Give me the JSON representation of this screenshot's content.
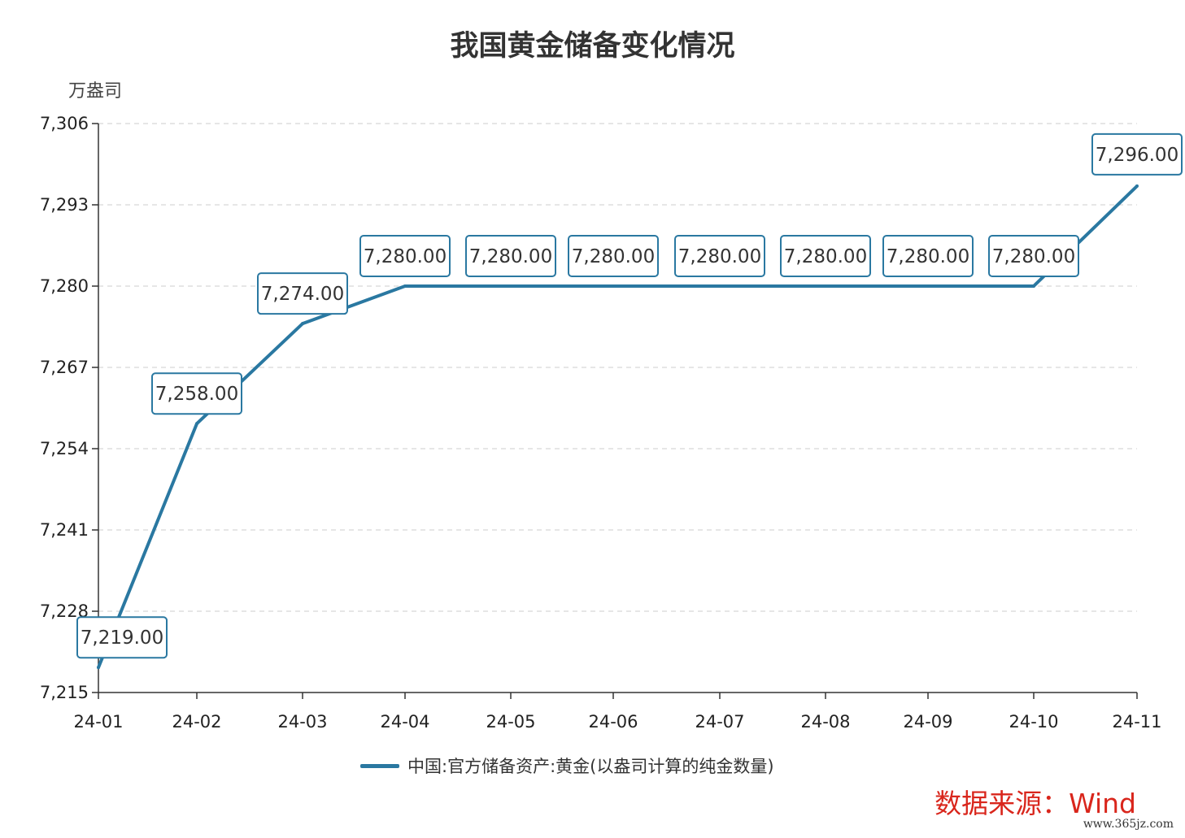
{
  "chart_data": {
    "type": "line",
    "title": "我国黄金储备变化情况",
    "ylabel": "万盎司",
    "categories": [
      "24-01",
      "24-02",
      "24-03",
      "24-04",
      "24-05",
      "24-06",
      "24-07",
      "24-08",
      "24-09",
      "24-10",
      "24-11"
    ],
    "series": [
      {
        "name": "中国:官方储备资产:黄金(以盎司计算的纯金数量)",
        "values": [
          7219,
          7258,
          7274,
          7280,
          7280,
          7280,
          7280,
          7280,
          7280,
          7280,
          7296
        ],
        "labels": [
          "7,219.00",
          "7,258.00",
          "7,274.00",
          "7,280.00",
          "7,280.00",
          "7,280.00",
          "7,280.00",
          "7,280.00",
          "7,280.00",
          "7,280.00",
          "7,296.00"
        ],
        "color": "#2a78a1"
      }
    ],
    "ylim": [
      7215,
      7306
    ],
    "yticks": [
      "7,215",
      "7,228",
      "7,241",
      "7,254",
      "7,267",
      "7,280",
      "7,293",
      "7,306"
    ],
    "grid": true,
    "legend_position": "bottom"
  },
  "source_note": "数据来源：Wind",
  "watermark": "www.365jz.com"
}
